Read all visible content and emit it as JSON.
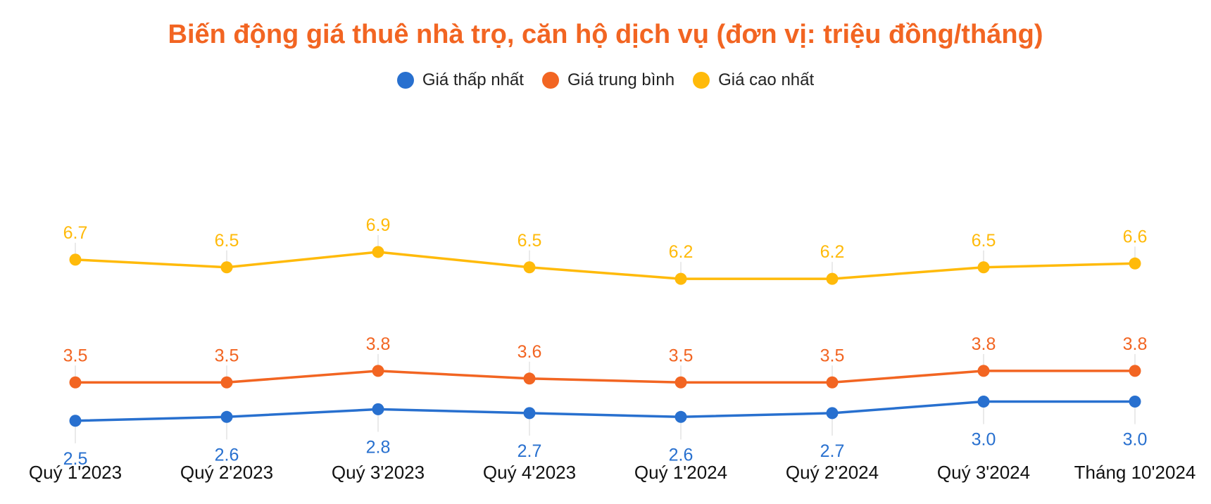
{
  "colors": {
    "title": "#F26522",
    "min": "#2870CF",
    "avg": "#F26522",
    "max": "#FFBA0A",
    "stem": "#e2e2e2",
    "xtick": "#111111"
  },
  "chart_data": {
    "type": "line",
    "title": "Biến động giá thuê nhà trọ, căn hộ dịch vụ (đơn vị: triệu đồng/tháng)",
    "xlabel": "",
    "ylabel": "",
    "grid": false,
    "legend_position": "top",
    "categories": [
      "Quý 1'2023",
      "Quý 2'2023",
      "Quý 3'2023",
      "Quý 4'2023",
      "Quý 1'2024",
      "Quý 2'2024",
      "Quý 3'2024",
      "Tháng 10'2024"
    ],
    "series": [
      {
        "key": "min",
        "name": "Giá thấp nhất",
        "values": [
          2.5,
          2.6,
          2.8,
          2.7,
          2.6,
          2.7,
          3.0,
          3.0
        ],
        "labels": [
          "2.5",
          "2.6",
          "2.8",
          "2.7",
          "2.6",
          "2.7",
          "3.0",
          "3.0"
        ],
        "label_position": "below"
      },
      {
        "key": "avg",
        "name": "Giá trung bình",
        "values": [
          3.5,
          3.5,
          3.8,
          3.6,
          3.5,
          3.5,
          3.8,
          3.8
        ],
        "labels": [
          "3.5",
          "3.5",
          "3.8",
          "3.6",
          "3.5",
          "3.5",
          "3.8",
          "3.8"
        ],
        "label_position": "above"
      },
      {
        "key": "max",
        "name": "Giá cao nhất",
        "values": [
          6.7,
          6.5,
          6.9,
          6.5,
          6.2,
          6.2,
          6.5,
          6.6
        ],
        "labels": [
          "6.7",
          "6.5",
          "6.9",
          "6.5",
          "6.2",
          "6.2",
          "6.5",
          "6.6"
        ],
        "label_position": "above"
      }
    ]
  }
}
